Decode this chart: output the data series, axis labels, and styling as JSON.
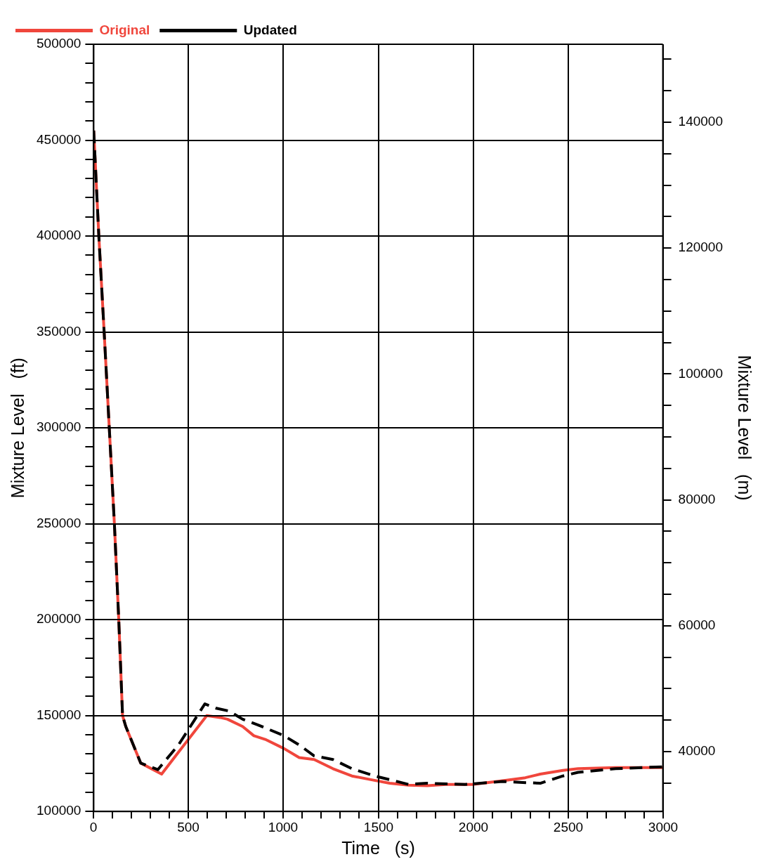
{
  "chart_data": {
    "type": "line",
    "xlabel": "Time   (s)",
    "ylabel": "Mixture Level   (ft)",
    "y2label": "Mixture Level   (m)",
    "legend": "top left",
    "grid": true,
    "xlim": [
      0,
      3000
    ],
    "xticks": [
      0,
      {
        "value": 100,
        "label": null
      },
      {
        "value": 200,
        "label": null
      },
      {
        "value": 300,
        "label": null
      },
      {
        "value": 400,
        "label": null
      },
      500,
      {
        "value": 600,
        "label": null
      },
      {
        "value": 700,
        "label": null
      },
      {
        "value": 800,
        "label": null
      },
      {
        "value": 900,
        "label": null
      },
      1000,
      {
        "value": 1100,
        "label": null
      },
      {
        "value": 1200,
        "label": null
      },
      {
        "value": 1300,
        "label": null
      },
      {
        "value": 1400,
        "label": null
      },
      1500,
      {
        "value": 1600,
        "label": null
      },
      {
        "value": 1700,
        "label": null
      },
      {
        "value": 1800,
        "label": null
      },
      {
        "value": 1900,
        "label": null
      },
      2000,
      {
        "value": 2100,
        "label": null
      },
      {
        "value": 2200,
        "label": null
      },
      {
        "value": 2300,
        "label": null
      },
      {
        "value": 2400,
        "label": null
      },
      2500,
      {
        "value": 2600,
        "label": null
      },
      {
        "value": 2700,
        "label": null
      },
      {
        "value": 2800,
        "label": null
      },
      {
        "value": 2900,
        "label": null
      },
      3000
    ],
    "ylim": [
      100000,
      500000
    ],
    "yticks": [
      100000,
      {
        "value": 110000,
        "label": null
      },
      {
        "value": 120000,
        "label": null
      },
      {
        "value": 130000,
        "label": null
      },
      {
        "value": 140000,
        "label": null
      },
      150000,
      {
        "value": 160000,
        "label": null
      },
      {
        "value": 170000,
        "label": null
      },
      {
        "value": 180000,
        "label": null
      },
      {
        "value": 190000,
        "label": null
      },
      200000,
      {
        "value": 210000,
        "label": null
      },
      {
        "value": 220000,
        "label": null
      },
      {
        "value": 230000,
        "label": null
      },
      {
        "value": 240000,
        "label": null
      },
      250000,
      {
        "value": 260000,
        "label": null
      },
      {
        "value": 270000,
        "label": null
      },
      {
        "value": 280000,
        "label": null
      },
      {
        "value": 290000,
        "label": null
      },
      300000,
      {
        "value": 310000,
        "label": null
      },
      {
        "value": 320000,
        "label": null
      },
      {
        "value": 330000,
        "label": null
      },
      {
        "value": 340000,
        "label": null
      },
      350000,
      {
        "value": 360000,
        "label": null
      },
      {
        "value": 370000,
        "label": null
      },
      {
        "value": 380000,
        "label": null
      },
      {
        "value": 390000,
        "label": null
      },
      400000,
      {
        "value": 410000,
        "label": null
      },
      {
        "value": 420000,
        "label": null
      },
      {
        "value": 430000,
        "label": null
      },
      {
        "value": 440000,
        "label": null
      },
      450000,
      {
        "value": 460000,
        "label": null
      },
      {
        "value": 470000,
        "label": null
      },
      {
        "value": 480000,
        "label": null
      },
      {
        "value": 490000,
        "label": null
      },
      500000
    ],
    "y2lim": [
      30480,
      152400
    ],
    "y2ticks": [
      {
        "value": 35000,
        "label": null
      },
      40000,
      {
        "value": 45000,
        "label": null
      },
      {
        "value": 50000,
        "label": null
      },
      {
        "value": 55000,
        "label": null
      },
      60000,
      {
        "value": 65000,
        "label": null
      },
      {
        "value": 70000,
        "label": null
      },
      {
        "value": 75000,
        "label": null
      },
      80000,
      {
        "value": 85000,
        "label": null
      },
      {
        "value": 90000,
        "label": null
      },
      {
        "value": 95000,
        "label": null
      },
      100000,
      {
        "value": 105000,
        "label": null
      },
      {
        "value": 110000,
        "label": null
      },
      {
        "value": 115000,
        "label": null
      },
      120000,
      {
        "value": 125000,
        "label": null
      },
      {
        "value": 130000,
        "label": null
      },
      {
        "value": 135000,
        "label": null
      },
      140000,
      {
        "value": 145000,
        "label": null
      },
      {
        "value": 150000,
        "label": null
      }
    ],
    "marker": "none",
    "series": [
      {
        "name": "Original",
        "color": "#f0463c",
        "line_style": "solid",
        "x": [
          0,
          27,
          55,
          82,
          109,
          132,
          152,
          169,
          248,
          358,
          447,
          596,
          666,
          705,
          785,
          844,
          904,
          1003,
          1083,
          1162,
          1261,
          1361,
          1460,
          1560,
          1659,
          1758,
          1857,
          1997,
          2155,
          2275,
          2354,
          2473,
          2553,
          2751,
          3000
        ],
        "values": [
          455000,
          400000,
          350000,
          300000,
          250000,
          200000,
          150000,
          144300,
          125200,
          119500,
          130900,
          150000,
          149000,
          148100,
          144300,
          139500,
          137600,
          132800,
          128100,
          127100,
          122300,
          118500,
          116600,
          114700,
          113700,
          113400,
          114100,
          114100,
          116000,
          117600,
          119500,
          121400,
          122300,
          122900,
          122900
        ]
      },
      {
        "name": "Updated",
        "color": "#000000",
        "line_style": "dashed",
        "x": [
          0,
          27,
          55,
          82,
          109,
          132,
          152,
          169,
          248,
          338,
          447,
          586,
          646,
          715,
          785,
          864,
          1003,
          1083,
          1162,
          1261,
          1361,
          1480,
          1560,
          1659,
          1758,
          1957,
          2155,
          2354,
          2473,
          2553,
          2751,
          3000
        ],
        "values": [
          455000,
          400000,
          350000,
          300000,
          250000,
          200000,
          150000,
          144300,
          125200,
          121800,
          134700,
          156100,
          153800,
          152300,
          148100,
          145200,
          139500,
          134700,
          129000,
          127100,
          122300,
          118500,
          116600,
          114100,
          114700,
          114100,
          115600,
          114700,
          118500,
          120400,
          122300,
          123300
        ]
      }
    ]
  }
}
